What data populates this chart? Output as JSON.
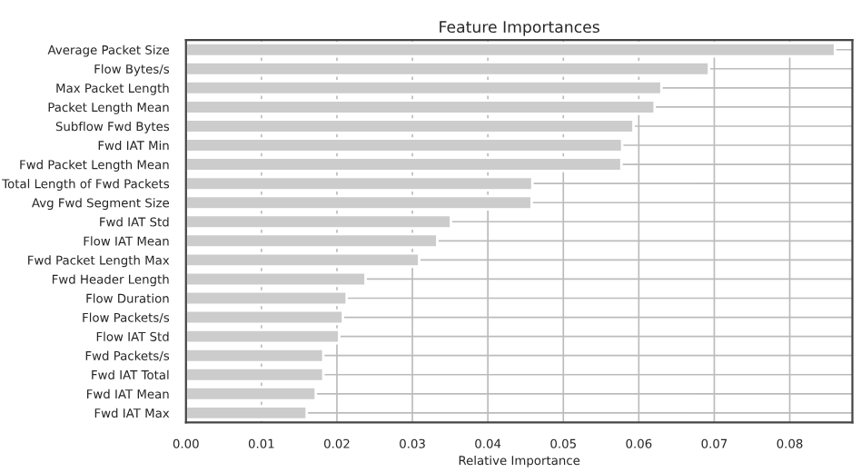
{
  "chart_data": {
    "type": "bar",
    "orientation": "horizontal",
    "title": "Feature Importances",
    "xlabel": "Relative Importance",
    "categories": [
      "Average Packet Size",
      "Flow Bytes/s",
      "Max Packet Length",
      "Packet Length Mean",
      "Subflow Fwd Bytes",
      "Fwd IAT Min",
      "Fwd Packet Length Mean",
      "Total Length of Fwd Packets",
      "Avg Fwd Segment Size",
      "Fwd IAT Std",
      "Flow IAT Mean",
      "Fwd Packet Length Max",
      "Fwd Header Length",
      "Flow Duration",
      "Flow Packets/s",
      "Flow IAT Std",
      "Fwd Packets/s",
      "Fwd IAT Total",
      "Fwd IAT Mean",
      "Fwd IAT Max"
    ],
    "values": [
      0.086,
      0.0693,
      0.063,
      0.0621,
      0.0593,
      0.0578,
      0.0577,
      0.0459,
      0.0458,
      0.0351,
      0.0333,
      0.0309,
      0.0238,
      0.0213,
      0.0208,
      0.0203,
      0.0182,
      0.0182,
      0.0172,
      0.016
    ],
    "color": "#cccccc",
    "xlim": [
      0,
      0.0883
    ],
    "xticks": [
      {
        "value": 0,
        "label": "0.00"
      },
      {
        "value": 0.01,
        "label": "0.01"
      },
      {
        "value": 0.02,
        "label": "0.02"
      },
      {
        "value": 0.03,
        "label": "0.03"
      },
      {
        "value": 0.04,
        "label": "0.04"
      },
      {
        "value": 0.05,
        "label": "0.05"
      },
      {
        "value": 0.06,
        "label": "0.06"
      },
      {
        "value": 0.07,
        "label": "0.07"
      },
      {
        "value": 0.08,
        "label": "0.08"
      }
    ],
    "grid": true
  }
}
